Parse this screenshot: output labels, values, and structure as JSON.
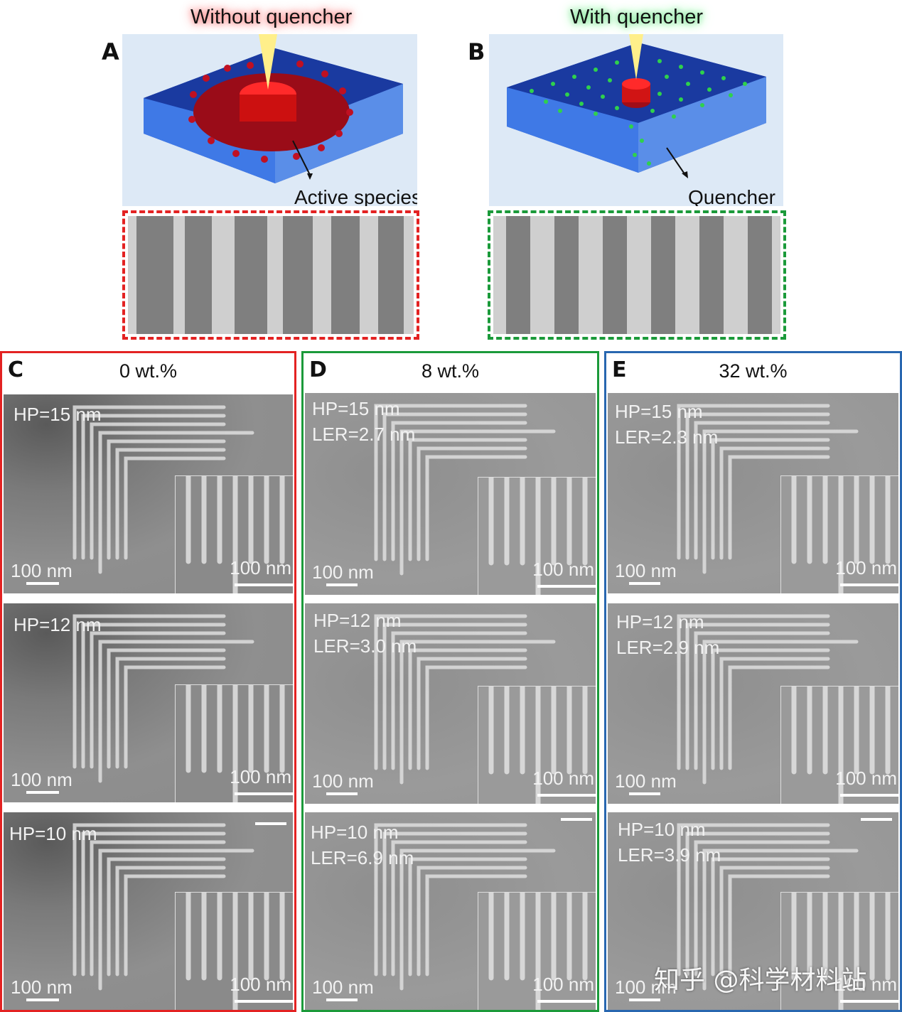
{
  "panel_a": {
    "letter": "A",
    "title": "Without quencher",
    "callout": "Active species"
  },
  "panel_b": {
    "letter": "B",
    "title": "With quencher",
    "callout": "Quencher"
  },
  "columns": [
    {
      "letter": "C",
      "heading": "0 wt.%",
      "border_color": "#e32222",
      "texture": "noisy",
      "rows": [
        {
          "hp": "HP=15 nm",
          "ler": "",
          "scale": "100 nm",
          "inset_scale": "100 nm"
        },
        {
          "hp": "HP=12 nm",
          "ler": "",
          "scale": "100 nm",
          "inset_scale": "100 nm"
        },
        {
          "hp": "HP=10 nm",
          "ler": "",
          "scale": "100 nm",
          "inset_scale": "100 nm"
        }
      ]
    },
    {
      "letter": "D",
      "heading": "8 wt.%",
      "border_color": "#1b9a3a",
      "texture": "smooth",
      "rows": [
        {
          "hp": "HP=15 nm",
          "ler": "LER=2.7 nm",
          "scale": "100 nm",
          "inset_scale": "100 nm"
        },
        {
          "hp": "HP=12 nm",
          "ler": "LER=3.0 nm",
          "scale": "100 nm",
          "inset_scale": "100 nm"
        },
        {
          "hp": "HP=10 nm",
          "ler": "LER=6.9 nm",
          "scale": "100 nm",
          "inset_scale": "100 nm"
        }
      ]
    },
    {
      "letter": "E",
      "heading": "32 wt.%",
      "border_color": "#2867b0",
      "texture": "smooth",
      "rows": [
        {
          "hp": "HP=15 nm",
          "ler": "LER=2.3 nm",
          "scale": "100 nm",
          "inset_scale": "100 nm"
        },
        {
          "hp": "HP=12 nm",
          "ler": "LER=2.9 nm",
          "scale": "100 nm",
          "inset_scale": "100 nm"
        },
        {
          "hp": "HP=10 nm",
          "ler": "LER=3.9 nm",
          "scale": "100 nm",
          "inset_scale": "100 nm"
        }
      ]
    }
  ],
  "watermark": "知乎 @科学材料站"
}
